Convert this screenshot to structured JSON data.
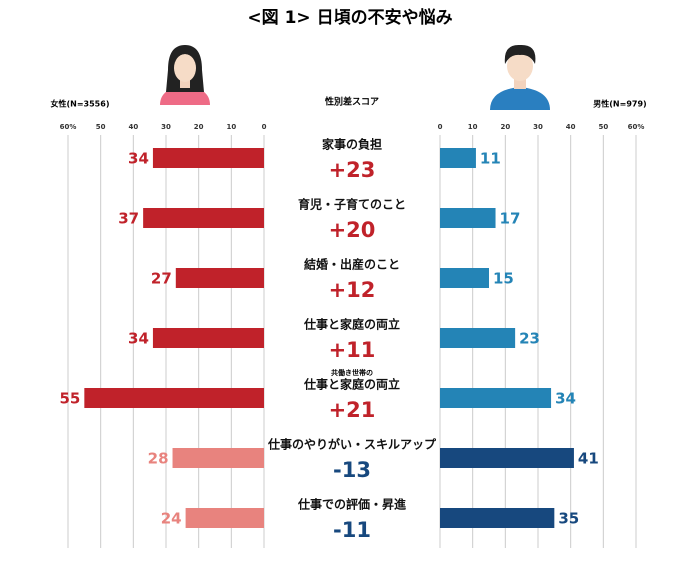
{
  "chart_data": {
    "type": "butterfly-bar",
    "title": "<図 1> 日頃の不安や悩み",
    "center_label": "性別差スコア",
    "categories": [
      "家事の負担",
      "育児・子育てのこと",
      "結婚・出産のこと",
      "仕事と家庭の両立",
      "仕事と家庭の両立",
      "仕事のやりがい・スキルアップ",
      "仕事での評価・昇進"
    ],
    "category_notes": [
      null,
      null,
      null,
      null,
      "共働き世帯の",
      null,
      null
    ],
    "series": [
      {
        "name": "女性(N=3556)",
        "side": "left",
        "values": [
          34,
          37,
          27,
          34,
          55,
          28,
          24
        ],
        "colors": [
          "#c0222a",
          "#c0222a",
          "#c0222a",
          "#c0222a",
          "#c0222a",
          "#e8837e",
          "#e8837e"
        ]
      },
      {
        "name": "男性(N=979)",
        "side": "right",
        "values": [
          11,
          17,
          15,
          23,
          34,
          41,
          35
        ],
        "colors": [
          "#2484b6",
          "#2484b6",
          "#2484b6",
          "#2484b6",
          "#2484b6",
          "#17487e",
          "#17487e"
        ]
      }
    ],
    "score": {
      "values": [
        23,
        20,
        12,
        11,
        21,
        -13,
        -11
      ],
      "value_labels": [
        "+23",
        "+20",
        "+12",
        "+11",
        "+21",
        "-13",
        "-11"
      ],
      "colors": [
        "#c0222a",
        "#c0222a",
        "#c0222a",
        "#c0222a",
        "#c0222a",
        "#17487e",
        "#17487e"
      ]
    },
    "xlim": [
      0,
      60
    ],
    "xticks": [
      0,
      10,
      20,
      30,
      40,
      50,
      {
        "value": 60,
        "label": "60%"
      }
    ],
    "grid": true
  }
}
